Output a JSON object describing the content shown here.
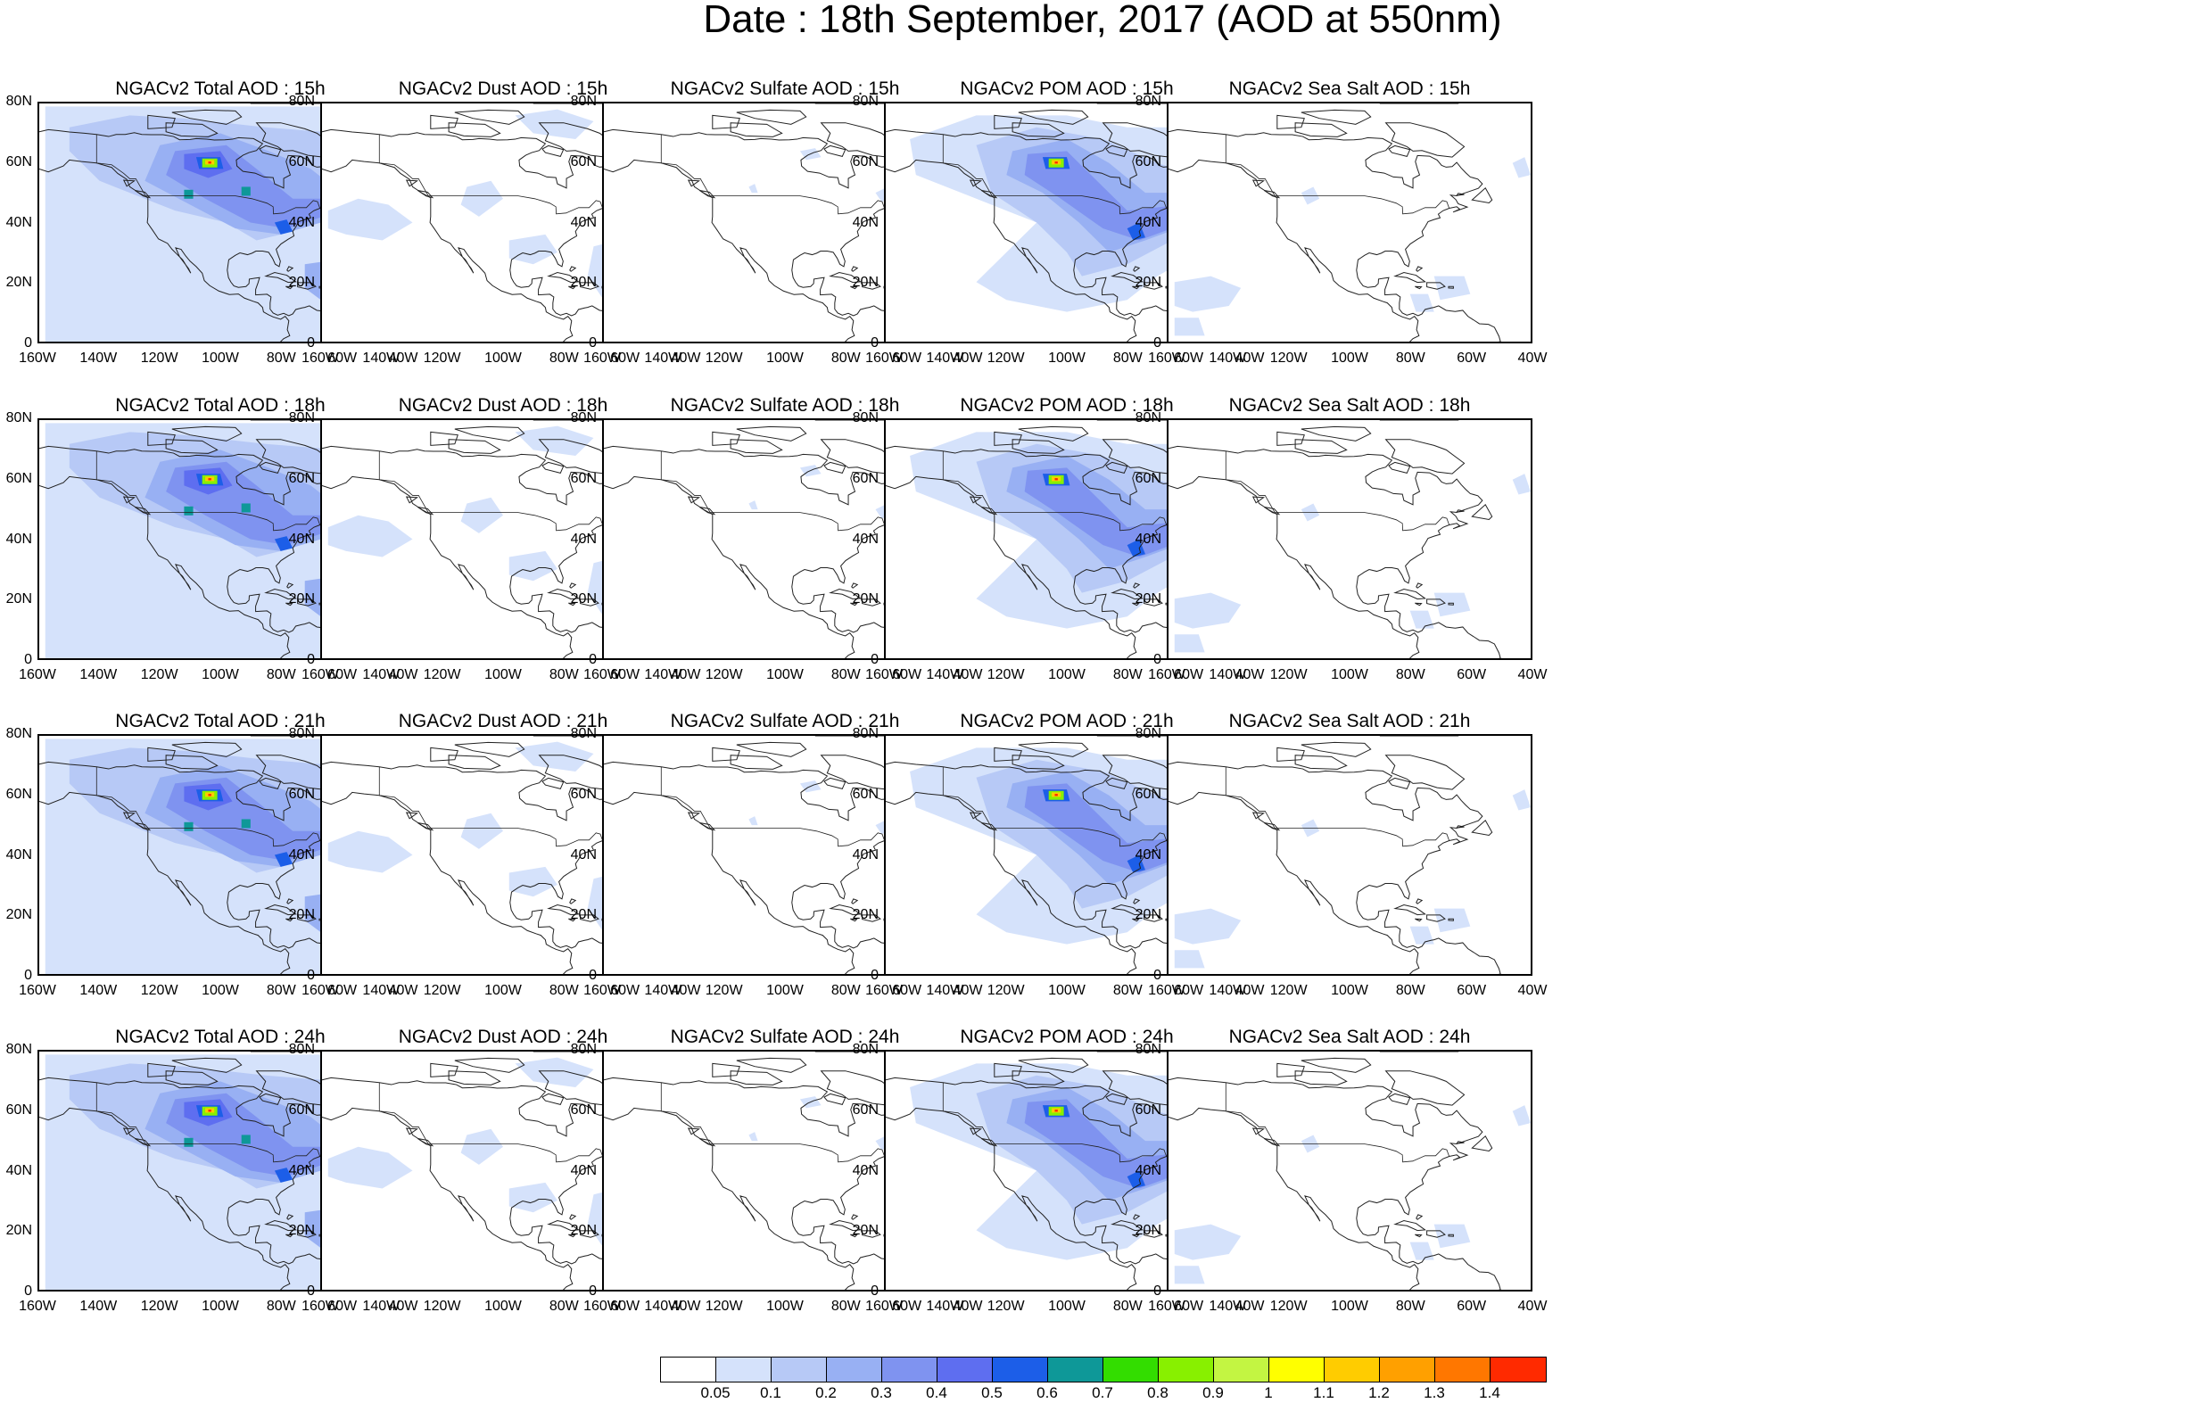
{
  "title": "Date : 18th September, 2017 (AOD at 550nm)",
  "rows": [
    {
      "time": "15h",
      "panels": [
        {
          "title": "NGACv2 Total AOD : 15h",
          "species": "total"
        },
        {
          "title": "NGACv2 Dust AOD : 15h",
          "species": "dust"
        },
        {
          "title": "NGACv2 Sulfate AOD : 15h",
          "species": "sulfate"
        },
        {
          "title": "NGACv2 POM AOD : 15h",
          "species": "pom"
        },
        {
          "title": "NGACv2 Sea Salt AOD : 15h",
          "species": "seasalt"
        }
      ]
    },
    {
      "time": "18h",
      "panels": [
        {
          "title": "NGACv2 Total AOD : 18h",
          "species": "total"
        },
        {
          "title": "NGACv2 Dust AOD : 18h",
          "species": "dust"
        },
        {
          "title": "NGACv2 Sulfate AOD : 18h",
          "species": "sulfate"
        },
        {
          "title": "NGACv2 POM AOD : 18h",
          "species": "pom"
        },
        {
          "title": "NGACv2 Sea Salt AOD : 18h",
          "species": "seasalt"
        }
      ]
    },
    {
      "time": "21h",
      "panels": [
        {
          "title": "NGACv2 Total AOD : 21h",
          "species": "total"
        },
        {
          "title": "NGACv2 Dust AOD : 21h",
          "species": "dust"
        },
        {
          "title": "NGACv2 Sulfate AOD : 21h",
          "species": "sulfate"
        },
        {
          "title": "NGACv2 POM AOD : 21h",
          "species": "pom"
        },
        {
          "title": "NGACv2 Sea Salt AOD : 21h",
          "species": "seasalt"
        }
      ]
    },
    {
      "time": "24h",
      "panels": [
        {
          "title": "NGACv2 Total AOD : 24h",
          "species": "total"
        },
        {
          "title": "NGACv2 Dust AOD : 24h",
          "species": "dust"
        },
        {
          "title": "NGACv2 Sulfate AOD : 24h",
          "species": "sulfate"
        },
        {
          "title": "NGACv2 POM AOD : 24h",
          "species": "pom"
        },
        {
          "title": "NGACv2 Sea Salt  AOD : 24h",
          "species": "seasalt"
        }
      ]
    }
  ],
  "lat_ticks": [
    "80N",
    "60N",
    "40N",
    "20N",
    "0"
  ],
  "lon_ticks": [
    "160W",
    "140W",
    "120W",
    "100W",
    "80W",
    "60W",
    "40W"
  ],
  "colorbar": {
    "colors": [
      "#ffffff",
      "#d5e2fb",
      "#b7c9f6",
      "#98b0f3",
      "#7f93f0",
      "#5e6ef0",
      "#1c5ee8",
      "#0e9898",
      "#33dd00",
      "#88f000",
      "#c3f542",
      "#ffff00",
      "#ffcc00",
      "#ffa000",
      "#ff7700",
      "#ff2a00"
    ],
    "labels": [
      "0.05",
      "0.1",
      "0.2",
      "0.3",
      "0.4",
      "0.5",
      "0.6",
      "0.7",
      "0.8",
      "0.9",
      "1",
      "1.1",
      "1.2",
      "1.3",
      "1.4"
    ]
  }
}
